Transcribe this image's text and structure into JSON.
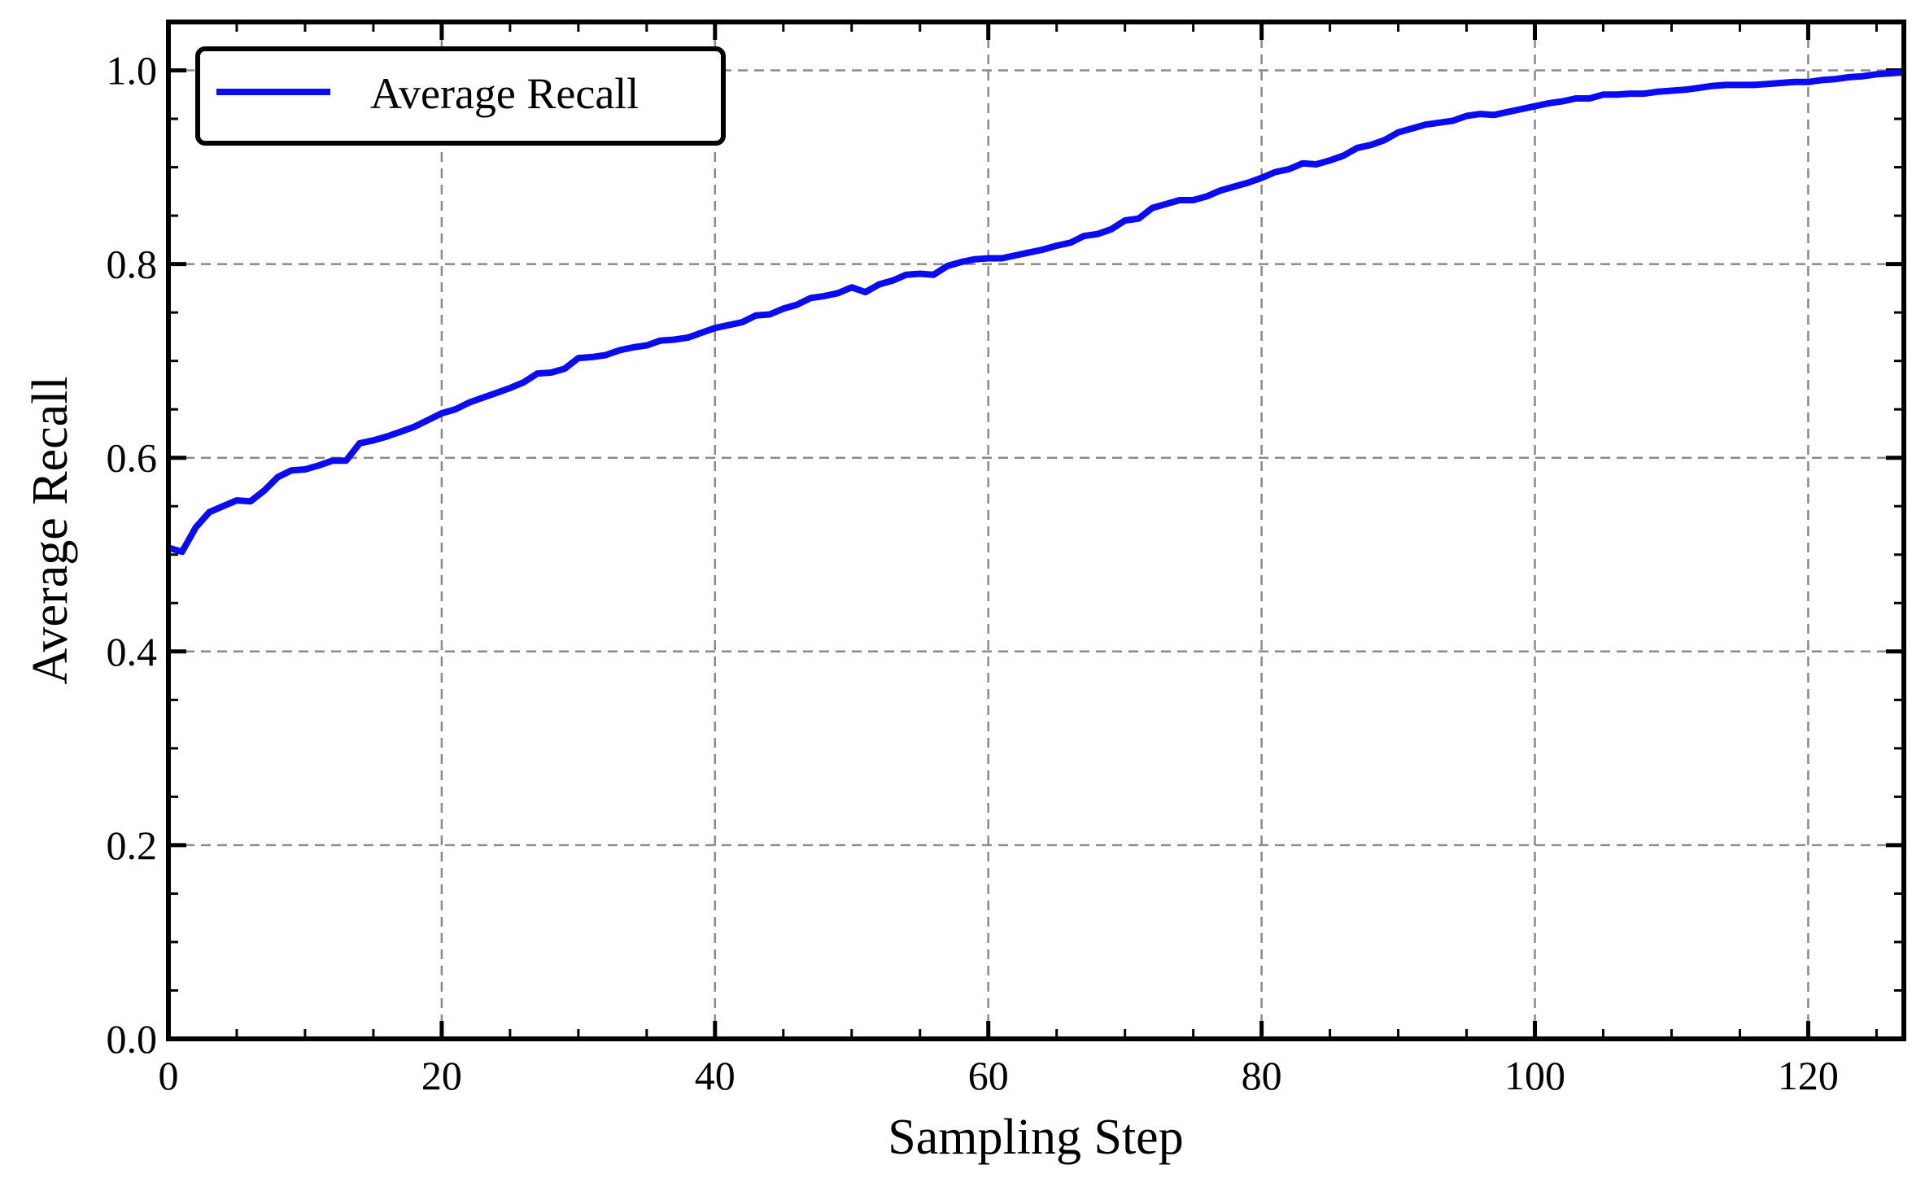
{
  "chart_data": {
    "type": "line",
    "title": "",
    "xlabel": "Sampling Step",
    "ylabel": "Average Recall",
    "xlim": [
      0,
      127
    ],
    "ylim": [
      0.0,
      1.05
    ],
    "xticks": [
      0,
      20,
      40,
      60,
      80,
      100,
      120
    ],
    "xtick_labels": [
      "0",
      "20",
      "40",
      "60",
      "80",
      "100",
      "120"
    ],
    "yticks": [
      0.0,
      0.2,
      0.4,
      0.6,
      0.8,
      1.0
    ],
    "ytick_labels": [
      "0.0",
      "0.2",
      "0.4",
      "0.6",
      "0.8",
      "1.0"
    ],
    "grid": true,
    "legend_position": "top-left",
    "series": [
      {
        "name": "Average Recall",
        "color": "#0a0af5",
        "x": [
          0,
          1,
          2,
          3,
          4,
          5,
          6,
          7,
          8,
          9,
          10,
          11,
          12,
          13,
          14,
          15,
          16,
          17,
          18,
          19,
          20,
          21,
          22,
          23,
          24,
          25,
          26,
          27,
          28,
          29,
          30,
          31,
          32,
          33,
          34,
          35,
          36,
          37,
          38,
          39,
          40,
          41,
          42,
          43,
          44,
          45,
          46,
          47,
          48,
          49,
          50,
          51,
          52,
          53,
          54,
          55,
          56,
          57,
          58,
          59,
          60,
          61,
          62,
          63,
          64,
          65,
          66,
          67,
          68,
          69,
          70,
          71,
          72,
          73,
          74,
          75,
          76,
          77,
          78,
          79,
          80,
          81,
          82,
          83,
          84,
          85,
          86,
          87,
          88,
          89,
          90,
          91,
          92,
          93,
          94,
          95,
          96,
          97,
          98,
          99,
          100,
          101,
          102,
          103,
          104,
          105,
          106,
          107,
          108,
          109,
          110,
          111,
          112,
          113,
          114,
          115,
          116,
          117,
          118,
          119,
          120,
          121,
          122,
          123,
          124,
          125,
          126,
          127
        ],
        "y": [
          0.507,
          0.503,
          0.528,
          0.544,
          0.55,
          0.556,
          0.555,
          0.566,
          0.58,
          0.587,
          0.588,
          0.592,
          0.597,
          0.597,
          0.615,
          0.618,
          0.622,
          0.627,
          0.632,
          0.639,
          0.646,
          0.65,
          0.657,
          0.662,
          0.667,
          0.672,
          0.678,
          0.687,
          0.688,
          0.692,
          0.703,
          0.704,
          0.706,
          0.711,
          0.714,
          0.716,
          0.721,
          0.722,
          0.724,
          0.729,
          0.734,
          0.737,
          0.74,
          0.747,
          0.748,
          0.754,
          0.758,
          0.765,
          0.767,
          0.77,
          0.776,
          0.771,
          0.779,
          0.783,
          0.789,
          0.79,
          0.789,
          0.798,
          0.802,
          0.805,
          0.806,
          0.806,
          0.809,
          0.812,
          0.815,
          0.819,
          0.822,
          0.829,
          0.831,
          0.836,
          0.845,
          0.847,
          0.858,
          0.862,
          0.866,
          0.866,
          0.87,
          0.876,
          0.88,
          0.884,
          0.889,
          0.895,
          0.898,
          0.904,
          0.903,
          0.907,
          0.912,
          0.92,
          0.923,
          0.928,
          0.936,
          0.94,
          0.944,
          0.946,
          0.948,
          0.953,
          0.955,
          0.954,
          0.957,
          0.96,
          0.963,
          0.966,
          0.968,
          0.971,
          0.971,
          0.975,
          0.975,
          0.976,
          0.976,
          0.978,
          0.979,
          0.98,
          0.982,
          0.984,
          0.985,
          0.985,
          0.985,
          0.986,
          0.987,
          0.988,
          0.988,
          0.99,
          0.991,
          0.993,
          0.994,
          0.996,
          0.997,
          0.998
        ]
      }
    ]
  }
}
